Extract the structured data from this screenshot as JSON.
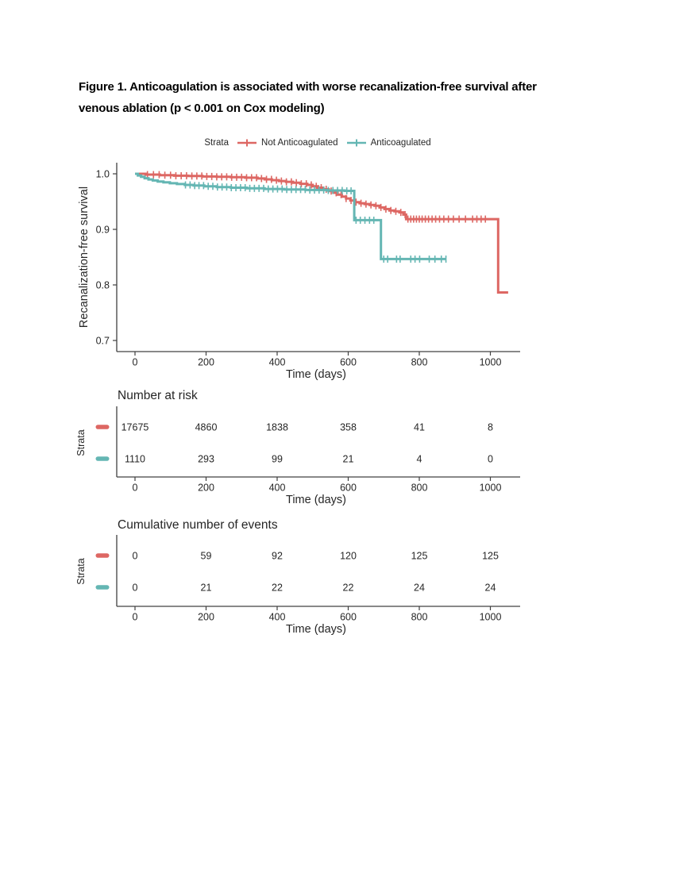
{
  "figure": {
    "title_line1": "Figure 1. Anticoagulation is associated with worse recanalization-free survival after",
    "title_line2": "venous ablation (p < 0.001 on Cox modeling)"
  },
  "legend": {
    "label": "Strata",
    "items": [
      {
        "name": "Not Anticoagulated",
        "color": "#dd6763"
      },
      {
        "name": "Anticoagulated",
        "color": "#64b6b3"
      }
    ]
  },
  "colors": {
    "axis": "#404040",
    "text": "#262626",
    "red": "#dd6763",
    "teal": "#64b6b3"
  },
  "chart_data": {
    "type": "line",
    "subtype": "kaplan-meier-step",
    "title": "",
    "xlabel": "Time (days)",
    "ylabel": "Recanalization-free survival",
    "xlim": [
      0,
      1050
    ],
    "ylim": [
      0.7,
      1.0
    ],
    "xticks": [
      0,
      200,
      400,
      600,
      800,
      1000
    ],
    "yticks": [
      1.0,
      0.9,
      0.8,
      0.7
    ],
    "grid": false,
    "legend_position": "top",
    "series": [
      {
        "name": "Not Anticoagulated",
        "color": "#dd6763",
        "end_time": 1050,
        "steps": [
          [
            0,
            1.0
          ],
          [
            30,
            0.9985
          ],
          [
            70,
            0.9975
          ],
          [
            110,
            0.9965
          ],
          [
            150,
            0.996
          ],
          [
            190,
            0.9952
          ],
          [
            230,
            0.9945
          ],
          [
            270,
            0.9938
          ],
          [
            310,
            0.993
          ],
          [
            345,
            0.9915
          ],
          [
            365,
            0.99
          ],
          [
            385,
            0.9885
          ],
          [
            405,
            0.987
          ],
          [
            425,
            0.9855
          ],
          [
            445,
            0.984
          ],
          [
            465,
            0.982
          ],
          [
            485,
            0.98
          ],
          [
            500,
            0.9775
          ],
          [
            515,
            0.975
          ],
          [
            530,
            0.9722
          ],
          [
            545,
            0.969
          ],
          [
            558,
            0.9658
          ],
          [
            570,
            0.9625
          ],
          [
            582,
            0.959
          ],
          [
            594,
            0.9555
          ],
          [
            606,
            0.952
          ],
          [
            618,
            0.949
          ],
          [
            632,
            0.947
          ],
          [
            646,
            0.9455
          ],
          [
            660,
            0.944
          ],
          [
            674,
            0.9425
          ],
          [
            688,
            0.9395
          ],
          [
            702,
            0.9365
          ],
          [
            716,
            0.934
          ],
          [
            730,
            0.9325
          ],
          [
            744,
            0.9305
          ],
          [
            755,
            0.9265
          ],
          [
            763,
            0.9185
          ],
          [
            1022,
            0.7865
          ]
        ],
        "censor_times": [
          35,
          52,
          68,
          84,
          100,
          115,
          130,
          145,
          160,
          174,
          188,
          202,
          216,
          230,
          244,
          258,
          272,
          286,
          300,
          314,
          328,
          342,
          356,
          370,
          384,
          398,
          412,
          426,
          440,
          454,
          468,
          482,
          496,
          510,
          524,
          538,
          552,
          566,
          580,
          594,
          608,
          622,
          636,
          650,
          664,
          678,
          692,
          706,
          720,
          734,
          748,
          760,
          768,
          776,
          784,
          792,
          800,
          808,
          817,
          826,
          836,
          846,
          857,
          869,
          882,
          896,
          912,
          930,
          950,
          962,
          974,
          986
        ]
      },
      {
        "name": "Anticoagulated",
        "color": "#64b6b3",
        "end_time": 875,
        "steps": [
          [
            0,
            1.0
          ],
          [
            8,
            0.997
          ],
          [
            17,
            0.9945
          ],
          [
            27,
            0.992
          ],
          [
            38,
            0.9898
          ],
          [
            50,
            0.988
          ],
          [
            64,
            0.9862
          ],
          [
            80,
            0.9845
          ],
          [
            98,
            0.983
          ],
          [
            118,
            0.9815
          ],
          [
            140,
            0.98
          ],
          [
            165,
            0.9788
          ],
          [
            195,
            0.9775
          ],
          [
            230,
            0.9762
          ],
          [
            270,
            0.975
          ],
          [
            315,
            0.9738
          ],
          [
            365,
            0.9727
          ],
          [
            420,
            0.9717
          ],
          [
            480,
            0.9708
          ],
          [
            540,
            0.97
          ],
          [
            590,
            0.9693
          ],
          [
            617,
            0.9165
          ],
          [
            692,
            0.8465
          ]
        ],
        "censor_times": [
          142,
          155,
          168,
          180,
          193,
          206,
          219,
          232,
          245,
          258,
          271,
          284,
          297,
          310,
          323,
          336,
          349,
          362,
          375,
          388,
          401,
          414,
          427,
          440,
          453,
          466,
          479,
          492,
          505,
          518,
          531,
          544,
          557,
          570,
          583,
          596,
          608,
          622,
          634,
          647,
          660,
          672,
          700,
          711,
          736,
          746,
          776,
          788,
          801,
          828,
          844,
          862,
          875
        ]
      }
    ]
  },
  "risk_table": {
    "title": "Number at risk",
    "axis_label": "Strata",
    "xlabel": "Time (days)",
    "xticks": [
      0,
      200,
      400,
      600,
      800,
      1000
    ],
    "rows": [
      {
        "stratum": "Not Anticoagulated",
        "color": "#dd6763",
        "values": [
          "17675",
          "4860",
          "1838",
          "358",
          "41",
          "8"
        ]
      },
      {
        "stratum": "Anticoagulated",
        "color": "#64b6b3",
        "values": [
          "1110",
          "293",
          "99",
          "21",
          "4",
          "0"
        ]
      }
    ]
  },
  "events_table": {
    "title": "Cumulative number of events",
    "axis_label": "Strata",
    "xlabel": "Time (days)",
    "xticks": [
      0,
      200,
      400,
      600,
      800,
      1000
    ],
    "rows": [
      {
        "stratum": "Not Anticoagulated",
        "color": "#dd6763",
        "values": [
          "0",
          "59",
          "92",
          "120",
          "125",
          "125"
        ]
      },
      {
        "stratum": "Anticoagulated",
        "color": "#64b6b3",
        "values": [
          "0",
          "21",
          "22",
          "22",
          "24",
          "24"
        ]
      }
    ]
  }
}
